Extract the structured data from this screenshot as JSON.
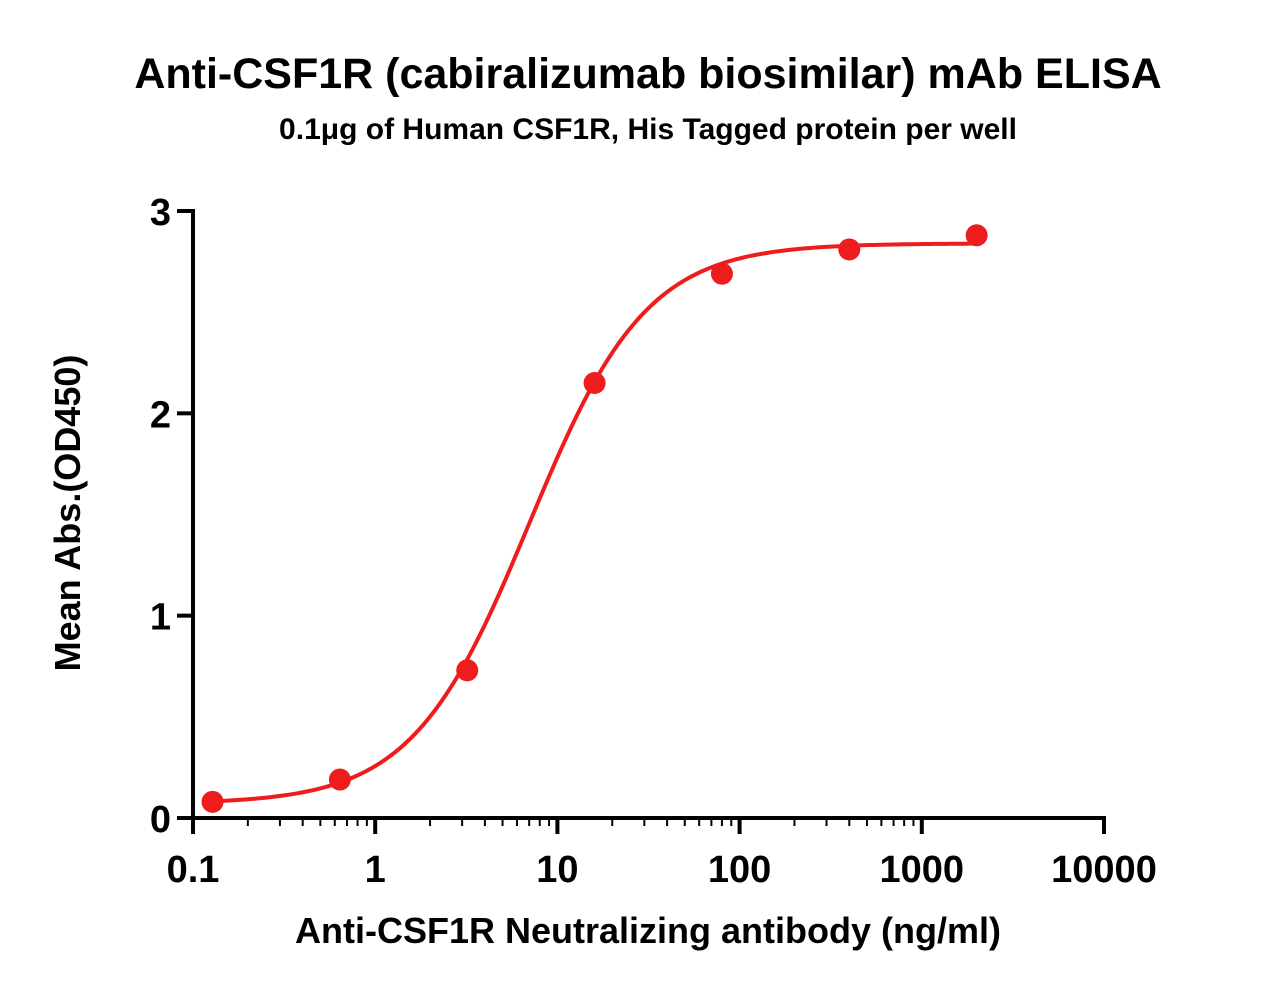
{
  "chart_data": {
    "type": "scatter",
    "title": "Anti-CSF1R (cabiralizumab biosimilar) mAb ELISA",
    "subtitle": "0.1μg of Human CSF1R, His Tagged protein per well",
    "xlabel": "Anti-CSF1R Neutralizing antibody (ng/ml)",
    "ylabel": "Mean Abs.(OD450)",
    "x_scale": "log",
    "xlim": [
      0.1,
      10000
    ],
    "ylim": [
      0,
      3
    ],
    "x_ticks": [
      {
        "value": 0.1,
        "label": "0.1"
      },
      {
        "value": 1,
        "label": "1"
      },
      {
        "value": 10,
        "label": "10"
      },
      {
        "value": 100,
        "label": "100"
      },
      {
        "value": 1000,
        "label": "1000"
      },
      {
        "value": 10000,
        "label": "10000"
      }
    ],
    "y_ticks": [
      {
        "value": 0,
        "label": "0"
      },
      {
        "value": 1,
        "label": "1"
      },
      {
        "value": 2,
        "label": "2"
      },
      {
        "value": 3,
        "label": "3"
      }
    ],
    "grid": false,
    "color": "#ee1c1c",
    "series": [
      {
        "x": [
          0.128,
          0.64,
          3.2,
          16,
          80,
          400,
          2000
        ],
        "y": [
          0.08,
          0.19,
          0.73,
          2.15,
          2.69,
          2.81,
          2.88
        ]
      }
    ],
    "fit_curve": {
      "model": "4PL",
      "bottom": 0.07,
      "top": 2.84,
      "ec50": 7.0,
      "hill": 1.35
    }
  }
}
